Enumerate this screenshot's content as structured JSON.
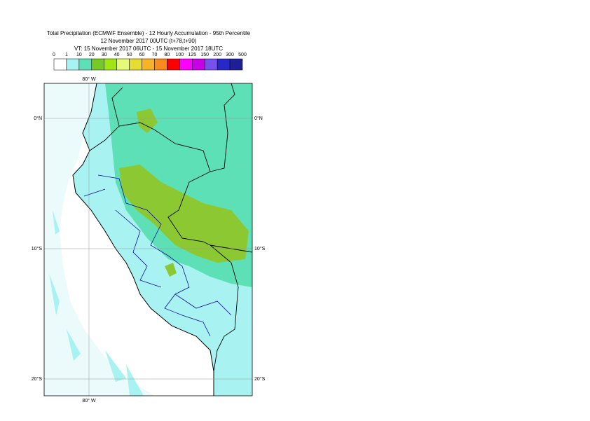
{
  "header": {
    "title_lines": [
      "Total Precipitation (ECMWF Ensemble) - 12 Hourly Accumulation - 95th Percentile",
      "12 November 2017 00UTC (t+78,t+90)",
      "VT: 15 November 2017 06UTC - 15 November 2017 18UTC"
    ]
  },
  "legend": {
    "labels": [
      "0",
      "1",
      "10",
      "20",
      "30",
      "40",
      "50",
      "60",
      "70",
      "80",
      "100",
      "125",
      "150",
      "200",
      "300",
      "500"
    ],
    "colors": [
      "#ffffff",
      "#a8f2f2",
      "#5ee0b6",
      "#78c828",
      "#a0e614",
      "#e6fa78",
      "#e6dc32",
      "#f5b428",
      "#fa8c1e",
      "#ff0000",
      "#ff00ff",
      "#c800e6",
      "#7850f0",
      "#2828c8",
      "#1e1e96"
    ]
  },
  "map": {
    "lon_label": "80° W",
    "lat_labels": [
      "0°N",
      "10°S",
      "20°S"
    ]
  }
}
